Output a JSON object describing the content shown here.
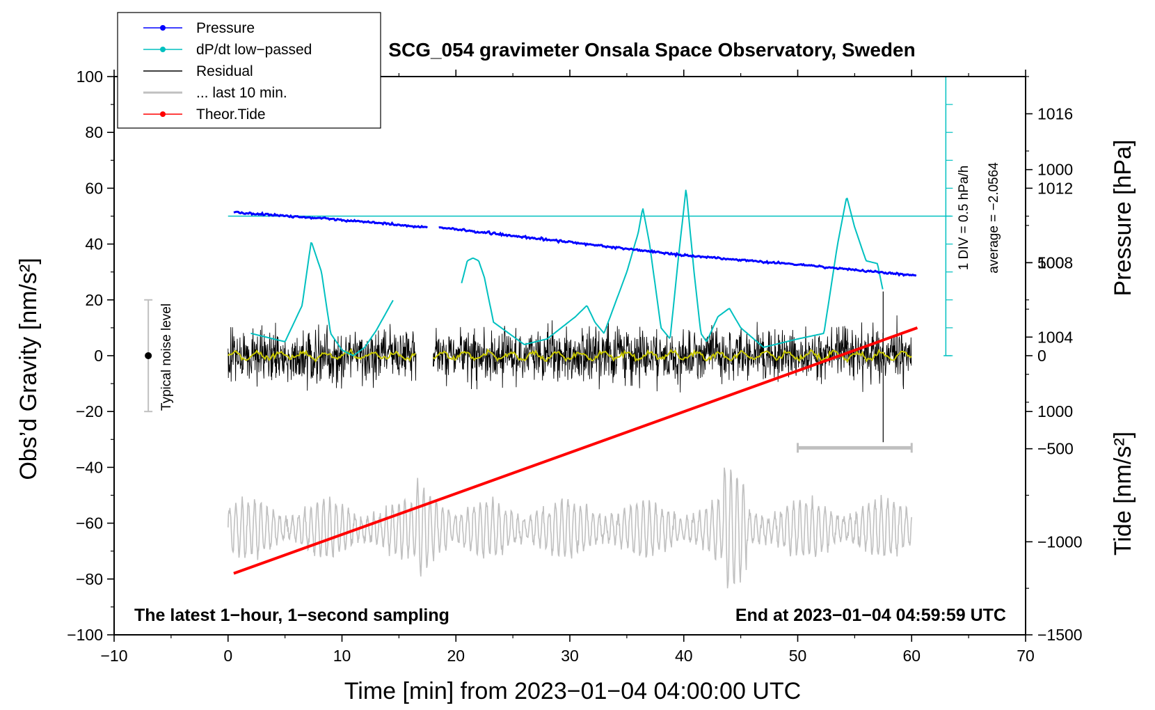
{
  "chart_data": {
    "type": "line",
    "title": "SCG_054 gravimeter Onsala Space Observatory, Sweden",
    "xlabel": "Time [min] from 2023−01−04 04:00:00 UTC",
    "ylabel": "Obs’d Gravity [nm/s²]",
    "ylabel_right_top": "Pressure [hPa]",
    "ylabel_right_bottom": "Tide [nm/s²]",
    "xlim": [
      -10,
      70
    ],
    "ylim": [
      -100,
      100
    ],
    "pressure_ylim": [
      988,
      1018
    ],
    "tide_ylim": [
      -1500,
      1500
    ],
    "x_ticks": [
      -10,
      0,
      10,
      20,
      30,
      40,
      50,
      60,
      70
    ],
    "x_tick_labels": [
      "−10",
      "0",
      "10",
      "20",
      "30",
      "40",
      "50",
      "60",
      "70"
    ],
    "y_ticks": [
      -100,
      -80,
      -60,
      -40,
      -20,
      0,
      20,
      40,
      60,
      80,
      100
    ],
    "y_tick_labels": [
      "−100",
      "−80",
      "−60",
      "−40",
      "−20",
      "0",
      "20",
      "40",
      "60",
      "80",
      "100"
    ],
    "pressure_ticks": [
      1000,
      1004,
      1008,
      1012,
      1016
    ],
    "pressure_tick_labels": [
      "1000",
      "1004",
      "1008",
      "1012",
      "1016"
    ],
    "tide_ticks": [
      -1500,
      -1000,
      -500,
      0,
      500,
      1000
    ],
    "tide_tick_labels": [
      "−1500",
      "−1000",
      "−500",
      "0",
      "500",
      "1000"
    ],
    "legend": [
      {
        "label": "Pressure",
        "color": "#0000ff",
        "marker": true
      },
      {
        "label": "dP/dt low−passed",
        "color": "#00c0c0",
        "marker": true
      },
      {
        "label": "Residual",
        "color": "#000000",
        "marker": false
      },
      {
        "label": "... last 10 min.",
        "color": "#c0c0c0",
        "marker": false
      },
      {
        "label": "Theor.Tide",
        "color": "#ff0000",
        "marker": true
      }
    ],
    "series": [
      {
        "name": "Pressure",
        "unit": "hPa",
        "color": "#0000ff",
        "x": [
          0.5,
          10,
          17.5,
          18.5,
          30,
          40,
          50,
          60.5
        ],
        "y": [
          1010.7,
          1010.3,
          1009.9,
          1009.9,
          1009.1,
          1008.4,
          1007.9,
          1007.3
        ]
      },
      {
        "name": "dP/dt low−passed",
        "unit": "gravity-axis units (1 DIV = 0.5 hPa/h)",
        "color": "#00c0c0",
        "segments": [
          {
            "x": [
              2,
              5,
              6.5,
              7.3,
              8.2,
              9,
              10,
              11,
              12,
              13,
              14.5
            ],
            "y": [
              8,
              5,
              18,
              41,
              30,
              8,
              2,
              0,
              3,
              9,
              20
            ]
          },
          {
            "x": [
              20.5,
              21,
              21.5,
              22,
              22.5,
              23.3,
              26,
              28,
              30.5,
              31.5,
              32.2,
              33,
              35,
              36,
              36.4,
              37,
              38,
              38.8,
              39.5,
              40.2,
              40.9,
              41.5,
              42,
              43,
              44,
              45,
              47,
              50,
              52.3,
              53.5,
              54.3,
              55,
              56,
              57,
              57.5
            ],
            "y": [
              26,
              34,
              35,
              34,
              28,
              12,
              4,
              6,
              14,
              18,
              12,
              8,
              30,
              44,
              53,
              40,
              10,
              6,
              34,
              60,
              30,
              8,
              5,
              14,
              17,
              10,
              3,
              6,
              8,
              40,
              57,
              46,
              34,
              33,
              23
            ]
          }
        ]
      },
      {
        "name": "Residual",
        "unit": "nm/s²",
        "color": "#000000",
        "segments": [
          [
            0,
            16.5
          ],
          [
            18,
            60
          ]
        ],
        "noise_amplitude": 21,
        "spike": {
          "x": 57.5,
          "y": -31
        }
      },
      {
        "name": "Residual smoothed",
        "unit": "nm/s²",
        "color": "#c8c800",
        "segments": [
          [
            0,
            16.5
          ],
          [
            18,
            60
          ]
        ],
        "level": 0
      },
      {
        "name": "... last 10 min.",
        "unit": "nm/s² (offset)",
        "color": "#c0c0c0",
        "x_range": [
          0,
          60
        ],
        "center": -62,
        "amplitude": 10
      },
      {
        "name": "Theor.Tide",
        "unit": "nm/s²",
        "color": "#ff0000",
        "x": [
          0.5,
          60.5
        ],
        "y": [
          -78,
          10
        ]
      }
    ],
    "annotations": {
      "noise_label": "Typical noise level",
      "noise_range": [
        -20,
        20
      ],
      "noise_x": -7,
      "dpdt_scale": "1 DIV = 0.5 hPa/h",
      "dpdt_average": "average = −2.0564",
      "dpdt_zero_level": 0,
      "dpdt_average_level": 50,
      "last10_bar_x": [
        50,
        60
      ],
      "last10_bar_y": -33,
      "bottom_left": "The latest 1−hour, 1−second sampling",
      "bottom_right": "End at 2023−01−04 04:59:59 UTC"
    }
  }
}
